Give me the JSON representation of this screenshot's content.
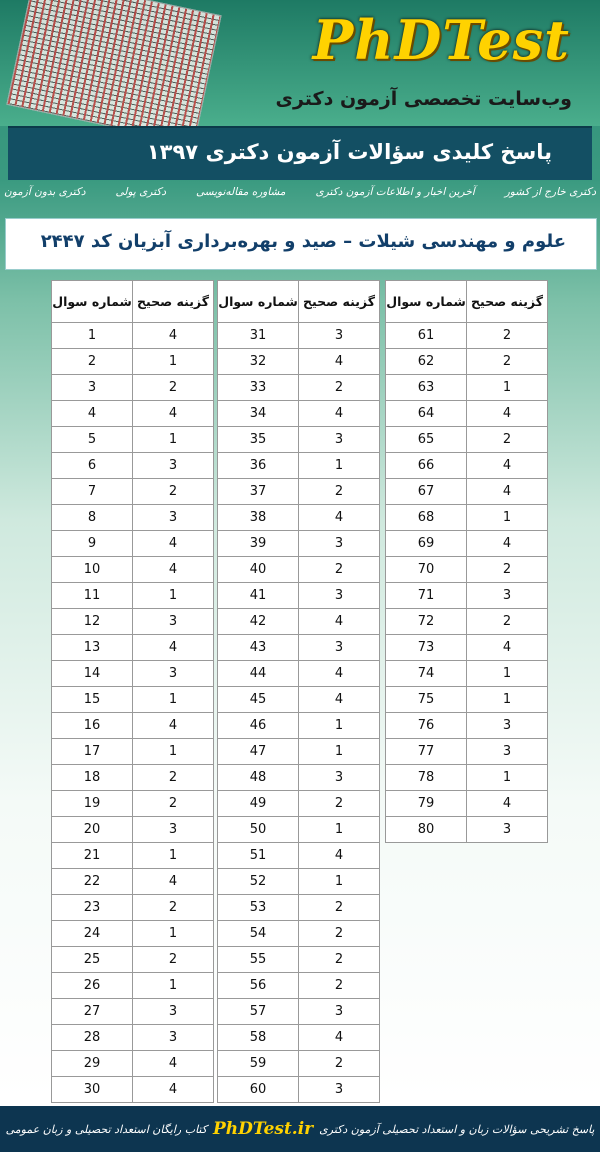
{
  "header": {
    "logo": "PhDTest",
    "subtitle": "وب‌سایت تخصصی آزمون دکتری",
    "banner": "پاسخ کلیدی سؤالات آزمون دکتری ۱۳۹۷"
  },
  "nav": [
    "دکتری بدون آزمون",
    "دکتری پولی",
    "مشاوره مقاله‌نویسی",
    "آخرین اخبار و اطلاعات آزمون دکتری",
    "دکتری خارج از کشور"
  ],
  "title": "علوم و مهندسی شیلات – صید و بهره‌برداری آبزیان کد ۲۴۴۷",
  "table": {
    "headers": [
      "شماره سوال",
      "گزینه صحیح"
    ],
    "columns": [
      [
        [
          1,
          4
        ],
        [
          2,
          1
        ],
        [
          3,
          2
        ],
        [
          4,
          4
        ],
        [
          5,
          1
        ],
        [
          6,
          3
        ],
        [
          7,
          2
        ],
        [
          8,
          3
        ],
        [
          9,
          4
        ],
        [
          10,
          4
        ],
        [
          11,
          1
        ],
        [
          12,
          3
        ],
        [
          13,
          4
        ],
        [
          14,
          3
        ],
        [
          15,
          1
        ],
        [
          16,
          4
        ],
        [
          17,
          1
        ],
        [
          18,
          2
        ],
        [
          19,
          2
        ],
        [
          20,
          3
        ],
        [
          21,
          1
        ],
        [
          22,
          4
        ],
        [
          23,
          2
        ],
        [
          24,
          1
        ],
        [
          25,
          2
        ],
        [
          26,
          1
        ],
        [
          27,
          3
        ],
        [
          28,
          3
        ],
        [
          29,
          4
        ],
        [
          30,
          4
        ]
      ],
      [
        [
          31,
          3
        ],
        [
          32,
          4
        ],
        [
          33,
          2
        ],
        [
          34,
          4
        ],
        [
          35,
          3
        ],
        [
          36,
          1
        ],
        [
          37,
          2
        ],
        [
          38,
          4
        ],
        [
          39,
          3
        ],
        [
          40,
          2
        ],
        [
          41,
          3
        ],
        [
          42,
          4
        ],
        [
          43,
          3
        ],
        [
          44,
          4
        ],
        [
          45,
          4
        ],
        [
          46,
          1
        ],
        [
          47,
          1
        ],
        [
          48,
          3
        ],
        [
          49,
          2
        ],
        [
          50,
          1
        ],
        [
          51,
          4
        ],
        [
          52,
          1
        ],
        [
          53,
          2
        ],
        [
          54,
          2
        ],
        [
          55,
          2
        ],
        [
          56,
          2
        ],
        [
          57,
          3
        ],
        [
          58,
          4
        ],
        [
          59,
          2
        ],
        [
          60,
          3
        ]
      ],
      [
        [
          61,
          2
        ],
        [
          62,
          2
        ],
        [
          63,
          1
        ],
        [
          64,
          4
        ],
        [
          65,
          2
        ],
        [
          66,
          4
        ],
        [
          67,
          4
        ],
        [
          68,
          1
        ],
        [
          69,
          4
        ],
        [
          70,
          2
        ],
        [
          71,
          3
        ],
        [
          72,
          2
        ],
        [
          73,
          4
        ],
        [
          74,
          1
        ],
        [
          75,
          1
        ],
        [
          76,
          3
        ],
        [
          77,
          3
        ],
        [
          78,
          1
        ],
        [
          79,
          4
        ],
        [
          80,
          3
        ]
      ]
    ]
  },
  "footer": {
    "left": "پاسخ تشریحی سؤالات زبان و استعداد تحصیلی آزمون دکتری",
    "brand": "PhDTest.ir",
    "right": "کتاب رایگان استعداد تحصیلی و زبان عمومی"
  }
}
